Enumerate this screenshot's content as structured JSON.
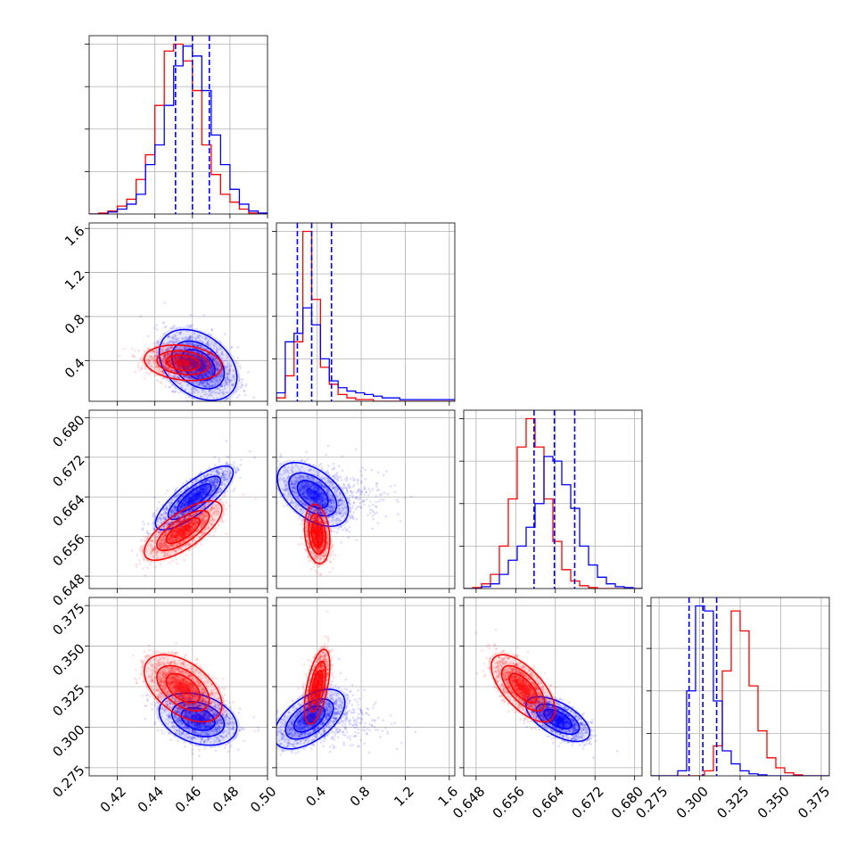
{
  "chart_data": {
    "type": "corner",
    "grid": true,
    "series": [
      {
        "color": "#0000ff"
      },
      {
        "color": "#ff0000"
      }
    ],
    "params": [
      {
        "range": [
          0.405,
          0.5
        ],
        "ticks": [
          "0.42",
          "0.44",
          "0.46",
          "0.48",
          "0.50"
        ],
        "tick_values": [
          0.42,
          0.44,
          0.46,
          0.48,
          0.5
        ]
      },
      {
        "range": [
          0.03,
          1.65
        ],
        "ticks": [
          "0.4",
          "0.8",
          "1.2",
          "1.6"
        ],
        "tick_values": [
          0.4,
          0.8,
          1.2,
          1.6
        ]
      },
      {
        "range": [
          0.6455,
          0.6815
        ],
        "ticks": [
          "0.648",
          "0.656",
          "0.664",
          "0.672",
          "0.680"
        ],
        "tick_values": [
          0.648,
          0.656,
          0.664,
          0.672,
          0.68
        ]
      },
      {
        "range": [
          0.27,
          0.38
        ],
        "ticks": [
          "0.275",
          "0.300",
          "0.325",
          "0.350",
          "0.375"
        ],
        "tick_values": [
          0.275,
          0.3,
          0.325,
          0.35,
          0.375
        ]
      }
    ],
    "histograms": [
      {
        "blue": {
          "edges": [
            0.405,
            0.41,
            0.415,
            0.42,
            0.425,
            0.43,
            0.435,
            0.44,
            0.445,
            0.45,
            0.455,
            0.46,
            0.465,
            0.47,
            0.475,
            0.48,
            0.485,
            0.49,
            0.495,
            0.5
          ],
          "counts": [
            0,
            0,
            2,
            5,
            10,
            20,
            50,
            70,
            110,
            150,
            170,
            160,
            125,
            80,
            50,
            25,
            10,
            3,
            1
          ]
        },
        "red": {
          "edges": [
            0.405,
            0.41,
            0.415,
            0.42,
            0.425,
            0.43,
            0.435,
            0.44,
            0.445,
            0.45,
            0.455,
            0.46,
            0.465,
            0.47,
            0.475,
            0.48,
            0.485,
            0.49,
            0.495,
            0.5
          ],
          "counts": [
            0,
            1,
            3,
            8,
            15,
            35,
            60,
            110,
            165,
            172,
            155,
            125,
            70,
            40,
            20,
            12,
            5,
            1,
            0
          ]
        },
        "quantiles": [
          0.451,
          0.46,
          0.469
        ]
      },
      {
        "blue": {
          "edges": [
            0.03,
            0.11,
            0.19,
            0.27,
            0.35,
            0.43,
            0.51,
            0.59,
            0.67,
            0.75,
            0.83,
            0.91,
            0.99,
            1.07,
            1.15,
            1.23,
            1.31,
            1.39,
            1.47,
            1.55,
            1.65
          ],
          "counts": [
            5,
            35,
            40,
            55,
            45,
            25,
            12,
            8,
            6,
            5,
            4,
            3,
            2,
            2,
            1,
            1,
            1,
            1,
            1,
            1
          ]
        },
        "red": {
          "edges": [
            0.03,
            0.11,
            0.19,
            0.27,
            0.35,
            0.43,
            0.51,
            0.59,
            0.67,
            0.75,
            0.83,
            0.91,
            0.99,
            1.07,
            1.15,
            1.23,
            1.31,
            1.39,
            1.47,
            1.55,
            1.65
          ],
          "counts": [
            2,
            15,
            35,
            100,
            60,
            20,
            10,
            4,
            2,
            1,
            1,
            0,
            0,
            0,
            0,
            0,
            0,
            0,
            0,
            0
          ]
        },
        "quantiles": [
          0.22,
          0.35,
          0.53
        ]
      },
      {
        "blue": {
          "edges": [
            0.6455,
            0.6473,
            0.6491,
            0.6509,
            0.6527,
            0.6545,
            0.6563,
            0.6581,
            0.6599,
            0.6617,
            0.6635,
            0.6653,
            0.6671,
            0.6689,
            0.6707,
            0.6725,
            0.6743,
            0.6761,
            0.6779,
            0.6797,
            0.6815
          ],
          "counts": [
            0,
            0,
            2,
            5,
            15,
            30,
            45,
            65,
            90,
            140,
            135,
            110,
            85,
            45,
            25,
            12,
            5,
            2,
            1,
            0
          ]
        },
        "red": {
          "edges": [
            0.6455,
            0.6473,
            0.6491,
            0.6509,
            0.6527,
            0.6545,
            0.6563,
            0.6581,
            0.6599,
            0.6617,
            0.6635,
            0.6653,
            0.6671,
            0.6689,
            0.6707,
            0.6725,
            0.6743,
            0.6761,
            0.6779,
            0.6797,
            0.6815
          ],
          "counts": [
            0,
            1,
            5,
            15,
            45,
            95,
            150,
            180,
            150,
            95,
            50,
            20,
            8,
            3,
            1,
            0,
            0,
            0,
            0,
            0
          ]
        },
        "quantiles": [
          0.6597,
          0.6638,
          0.6679
        ]
      },
      {
        "blue": {
          "edges": [
            0.27,
            0.2755,
            0.281,
            0.2865,
            0.292,
            0.2975,
            0.303,
            0.3085,
            0.314,
            0.3195,
            0.325,
            0.3305,
            0.336,
            0.3415,
            0.347,
            0.3525,
            0.358,
            0.3635,
            0.369,
            0.3745,
            0.38
          ],
          "counts": [
            0,
            0,
            0,
            5,
            85,
            170,
            165,
            75,
            25,
            12,
            5,
            2,
            1,
            0,
            0,
            0,
            0,
            0,
            0,
            0
          ]
        },
        "red": {
          "edges": [
            0.27,
            0.2755,
            0.281,
            0.2865,
            0.292,
            0.2975,
            0.303,
            0.3085,
            0.314,
            0.3195,
            0.325,
            0.3305,
            0.336,
            0.3415,
            0.347,
            0.3525,
            0.358,
            0.3635,
            0.369,
            0.3745,
            0.38
          ],
          "counts": [
            0,
            0,
            0,
            0,
            0,
            0,
            5,
            30,
            105,
            165,
            145,
            90,
            45,
            18,
            8,
            3,
            1,
            0,
            0,
            0
          ]
        },
        "quantiles": [
          0.2935,
          0.302,
          0.3105
        ]
      }
    ],
    "pairs": [
      {
        "i": 0,
        "j": 1,
        "blue": {
          "center": [
            0.463,
            0.36
          ],
          "sd": [
            0.009,
            0.14
          ],
          "rho": -0.35,
          "n": 1700
        },
        "red": {
          "center": [
            0.455,
            0.38
          ],
          "sd": [
            0.009,
            0.07
          ],
          "rho": -0.2,
          "n": 1500
        }
      },
      {
        "i": 0,
        "j": 2,
        "blue": {
          "center": [
            0.461,
            0.6638
          ],
          "sd": [
            0.009,
            0.0028
          ],
          "rho": 0.8,
          "n": 1600
        },
        "red": {
          "center": [
            0.455,
            0.6572
          ],
          "sd": [
            0.009,
            0.0026
          ],
          "rho": 0.72,
          "n": 1600
        }
      },
      {
        "i": 1,
        "j": 2,
        "blue": {
          "center": [
            0.36,
            0.6645
          ],
          "sd": [
            0.14,
            0.0028
          ],
          "rho": -0.5,
          "n": 1600
        },
        "red": {
          "center": [
            0.4,
            0.6565
          ],
          "sd": [
            0.05,
            0.0026
          ],
          "rho": -0.2,
          "n": 1600
        }
      },
      {
        "i": 0,
        "j": 3,
        "blue": {
          "center": [
            0.463,
            0.305
          ],
          "sd": [
            0.009,
            0.007
          ],
          "rho": -0.3,
          "n": 1600
        },
        "red": {
          "center": [
            0.455,
            0.324
          ],
          "sd": [
            0.009,
            0.009
          ],
          "rho": -0.5,
          "n": 1600
        }
      },
      {
        "i": 1,
        "j": 3,
        "blue": {
          "center": [
            0.33,
            0.305
          ],
          "sd": [
            0.14,
            0.008
          ],
          "rho": 0.55,
          "n": 1600
        },
        "red": {
          "center": [
            0.4,
            0.325
          ],
          "sd": [
            0.05,
            0.01
          ],
          "rho": 0.55,
          "n": 1600
        }
      },
      {
        "i": 2,
        "j": 3,
        "blue": {
          "center": [
            0.6645,
            0.305
          ],
          "sd": [
            0.0028,
            0.006
          ],
          "rho": -0.6,
          "n": 1600
        },
        "red": {
          "center": [
            0.6575,
            0.324
          ],
          "sd": [
            0.0028,
            0.009
          ],
          "rho": -0.65,
          "n": 1600
        }
      }
    ]
  }
}
